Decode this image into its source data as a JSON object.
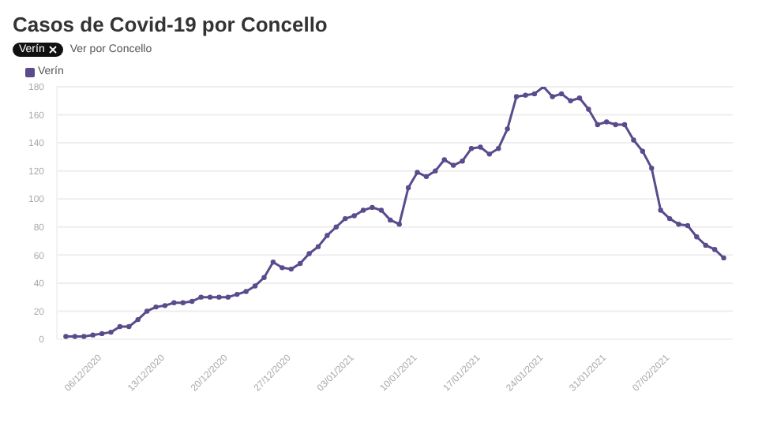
{
  "chart_data": {
    "type": "line",
    "title": "Casos de Covid-19 por Concello",
    "annotations": [
      "Verín",
      "Ver por Concello"
    ],
    "x": [
      "2020-12-02",
      "2020-12-03",
      "2020-12-04",
      "2020-12-05",
      "2020-12-06",
      "2020-12-07",
      "2020-12-08",
      "2020-12-09",
      "2020-12-10",
      "2020-12-11",
      "2020-12-12",
      "2020-12-13",
      "2020-12-14",
      "2020-12-15",
      "2020-12-16",
      "2020-12-17",
      "2020-12-18",
      "2020-12-19",
      "2020-12-20",
      "2020-12-21",
      "2020-12-22",
      "2020-12-23",
      "2020-12-24",
      "2020-12-25",
      "2020-12-26",
      "2020-12-27",
      "2020-12-28",
      "2020-12-29",
      "2020-12-30",
      "2020-12-31",
      "2021-01-01",
      "2021-01-02",
      "2021-01-03",
      "2021-01-04",
      "2021-01-05",
      "2021-01-06",
      "2021-01-07",
      "2021-01-08",
      "2021-01-09",
      "2021-01-10",
      "2021-01-11",
      "2021-01-12",
      "2021-01-13",
      "2021-01-14",
      "2021-01-15",
      "2021-01-16",
      "2021-01-17",
      "2021-01-18",
      "2021-01-19",
      "2021-01-20",
      "2021-01-21",
      "2021-01-22",
      "2021-01-23",
      "2021-01-24",
      "2021-01-25",
      "2021-01-26",
      "2021-01-27",
      "2021-01-28",
      "2021-01-29",
      "2021-01-30",
      "2021-01-31",
      "2021-02-01",
      "2021-02-02",
      "2021-02-03",
      "2021-02-04",
      "2021-02-05",
      "2021-02-06",
      "2021-02-07",
      "2021-02-08",
      "2021-02-09",
      "2021-02-10",
      "2021-02-11",
      "2021-02-12",
      "2021-02-13"
    ],
    "series": [
      {
        "name": "Verín",
        "color": "#5a4b8c",
        "values": [
          2,
          2,
          2,
          3,
          4,
          5,
          9,
          9,
          14,
          20,
          23,
          24,
          26,
          26,
          27,
          30,
          30,
          30,
          30,
          32,
          34,
          38,
          44,
          55,
          51,
          50,
          54,
          61,
          66,
          74,
          80,
          86,
          88,
          92,
          94,
          92,
          85,
          82,
          108,
          119,
          116,
          120,
          128,
          124,
          127,
          136,
          137,
          132,
          136,
          150,
          173,
          174,
          175,
          180,
          173,
          175,
          170,
          172,
          164,
          153,
          155,
          153,
          153,
          142,
          134,
          122,
          92,
          86,
          82,
          81,
          73,
          67,
          64,
          58
        ]
      }
    ],
    "xlim": [
      "2020-12-01",
      "2021-02-14"
    ],
    "xticks": [
      {
        "value": "2020-12-06",
        "label": "06/12/2020"
      },
      {
        "value": "2020-12-13",
        "label": "13/12/2020"
      },
      {
        "value": "2020-12-20",
        "label": "20/12/2020"
      },
      {
        "value": "2020-12-27",
        "label": "27/12/2020"
      },
      {
        "value": "2021-01-03",
        "label": "03/01/2021"
      },
      {
        "value": "2021-01-10",
        "label": "10/01/2021"
      },
      {
        "value": "2021-01-17",
        "label": "17/01/2021"
      },
      {
        "value": "2021-01-24",
        "label": "24/01/2021"
      },
      {
        "value": "2021-01-31",
        "label": "31/01/2021"
      },
      {
        "value": "2021-02-07",
        "label": "07/02/2021"
      }
    ],
    "ylim": [
      0,
      180
    ],
    "yticks": [
      0,
      20,
      40,
      60,
      80,
      100,
      120,
      140,
      160,
      180
    ],
    "grid": "y",
    "legend": "top left",
    "marker": "circle",
    "line_style": "solid"
  }
}
